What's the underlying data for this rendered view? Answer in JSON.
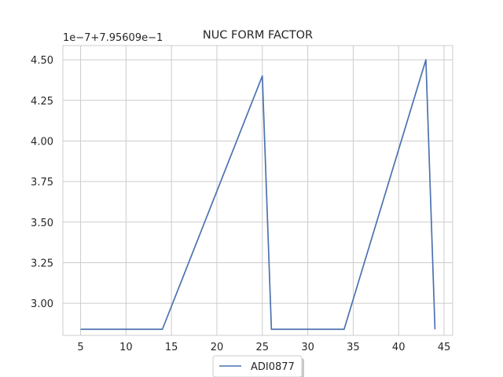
{
  "chart_data": {
    "type": "line",
    "title": "NUC FORM FACTOR",
    "offset_label": "1e−7+7.95609e−1",
    "xlabel": "",
    "ylabel": "",
    "xlim": [
      3.05,
      45.95
    ],
    "ylim": [
      2.8025,
      4.5875
    ],
    "xticks": [
      5,
      10,
      15,
      20,
      25,
      30,
      35,
      40,
      45
    ],
    "yticks": [
      3.0,
      3.25,
      3.5,
      3.75,
      4.0,
      4.25,
      4.5
    ],
    "ytick_labels": [
      "3.00",
      "3.25",
      "3.50",
      "3.75",
      "4.00",
      "4.25",
      "4.50"
    ],
    "grid": true,
    "legend_position": "below",
    "series": [
      {
        "name": "ADI0877",
        "color": "#4c72b0",
        "x": [
          5,
          14,
          25,
          26,
          34,
          43,
          44
        ],
        "y": [
          2.84,
          2.84,
          4.4,
          2.84,
          2.84,
          4.5,
          2.84
        ]
      }
    ]
  }
}
